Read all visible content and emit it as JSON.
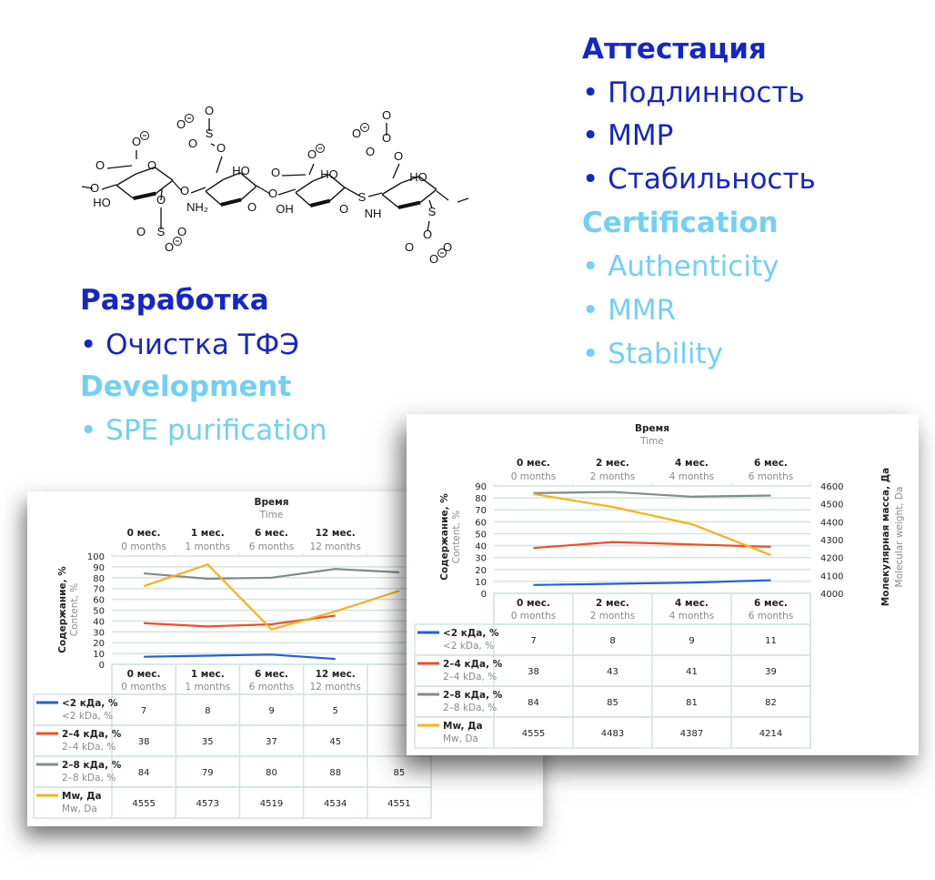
{
  "attestation": {
    "title_ru": "Аттестация",
    "items_ru": [
      "• Подлинность",
      "• ММР",
      "• Стабильность"
    ],
    "title_en": "Certification",
    "items_en": [
      "• Authenticity",
      "• MMR",
      "• Stability"
    ]
  },
  "development": {
    "title_ru": "Разработка",
    "items_ru": [
      "• Очистка ТФЭ"
    ],
    "title_en": "Development",
    "items_en": [
      "• SPE purification"
    ]
  },
  "molecule": {
    "labels": [
      "O",
      "O",
      "O",
      "O",
      "HO",
      "O",
      "S",
      "O",
      "O",
      "O",
      "O",
      "S",
      "O",
      "O",
      "O",
      "O",
      "HO",
      "NH₂",
      "O",
      "O",
      "O",
      "O",
      "HO",
      "OH",
      "O",
      "S",
      "O",
      "O",
      "O",
      "O",
      "O",
      "HO",
      "NH",
      "S",
      "O",
      "O",
      "O",
      "O"
    ]
  },
  "colors": {
    "title_dark": "#1526c8",
    "title_light": "#72d0f4",
    "lt2": "#1f5fe0",
    "r24": "#f04e23",
    "r28": "#7f8c8a",
    "mw": "#fbb01a"
  },
  "chart_data": [
    {
      "type": "line",
      "title": "Время",
      "subtitle": "Time",
      "ylabel": "Содержание, %",
      "ylabel_en": "Content, %",
      "ylim": [
        0,
        100
      ],
      "yticks": [
        "0",
        "10",
        "20",
        "30",
        "40",
        "50",
        "60",
        "70",
        "80",
        "90",
        "100"
      ],
      "y2lim": [
        4490,
        4580
      ],
      "grid": true,
      "legend": "table-bottom",
      "categories": [
        {
          "ru": "0 мес.",
          "en": "0 months"
        },
        {
          "ru": "1 мес.",
          "en": "1 months"
        },
        {
          "ru": "6 мес.",
          "en": "6 months"
        },
        {
          "ru": "12 мес.",
          "en": "12 months"
        },
        {
          "ru": "",
          "en": ""
        }
      ],
      "series": [
        {
          "name": "<2 кДа, %",
          "name_en": "<2 kDa, %",
          "color": "#1f5fe0",
          "axis": "left",
          "values": [
            7,
            8,
            9,
            5,
            null
          ]
        },
        {
          "name": "2–4 кДа, %",
          "name_en": "2–4 kDa, %",
          "color": "#f04e23",
          "axis": "left",
          "values": [
            38,
            35,
            37,
            45,
            null
          ]
        },
        {
          "name": "2–8 кДа, %",
          "name_en": "2–8 kDa, %",
          "color": "#7f8c8a",
          "axis": "left",
          "values": [
            84,
            79,
            80,
            88,
            85
          ]
        },
        {
          "name": "Mw, Да",
          "name_en": "Mw, Da",
          "color": "#fbb01a",
          "axis": "right",
          "values": [
            4555,
            4573,
            4519,
            4534,
            4551
          ]
        }
      ]
    },
    {
      "type": "line",
      "title": "Время",
      "subtitle": "Time",
      "ylabel": "Содержание, %",
      "ylabel_en": "Content, %",
      "y2label": "Молекулярная масса, Да",
      "y2label_en": "Molecular weight, Da",
      "ylim": [
        0,
        90
      ],
      "yticks": [
        "0",
        "10",
        "20",
        "30",
        "40",
        "50",
        "60",
        "70",
        "80",
        "90"
      ],
      "y2lim": [
        4000,
        4600
      ],
      "y2ticks": [
        "4000",
        "4100",
        "4200",
        "4300",
        "4400",
        "4500",
        "4600"
      ],
      "grid": true,
      "legend": "table-bottom",
      "categories": [
        {
          "ru": "0 мес.",
          "en": "0 months"
        },
        {
          "ru": "2 мес.",
          "en": "2 months"
        },
        {
          "ru": "4 мес.",
          "en": "4 months"
        },
        {
          "ru": "6 мес.",
          "en": "6 months"
        }
      ],
      "series": [
        {
          "name": "<2 кДа, %",
          "name_en": "<2 kDa, %",
          "color": "#1f5fe0",
          "axis": "left",
          "values": [
            7,
            8,
            9,
            11
          ]
        },
        {
          "name": "2–4 кДа, %",
          "name_en": "2–4 kDa, %",
          "color": "#f04e23",
          "axis": "left",
          "values": [
            38,
            43,
            41,
            39
          ]
        },
        {
          "name": "2–8 кДа, %",
          "name_en": "2–8 kDa, %",
          "color": "#7f8c8a",
          "axis": "left",
          "values": [
            84,
            85,
            81,
            82
          ]
        },
        {
          "name": "Mw, Да",
          "name_en": "Mw, Da",
          "color": "#fbb01a",
          "axis": "right",
          "values": [
            4555,
            4483,
            4387,
            4214
          ]
        }
      ]
    }
  ]
}
